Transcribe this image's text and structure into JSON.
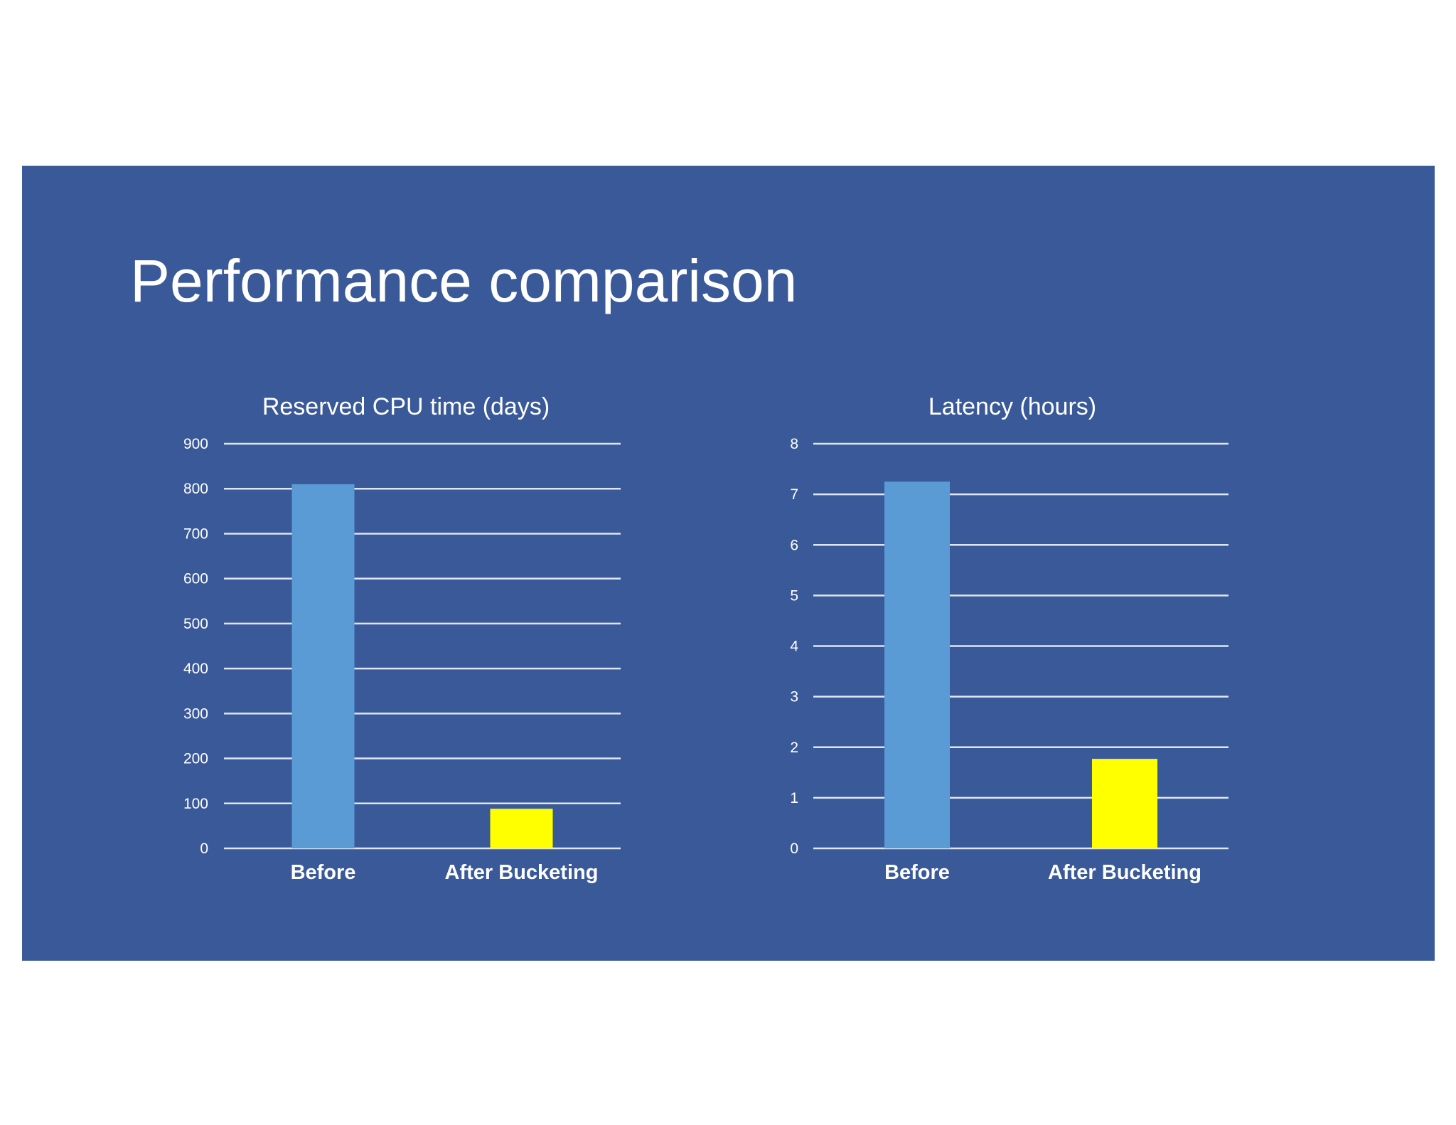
{
  "slide": {
    "title": "Performance comparison",
    "background_color": "#3a5999"
  },
  "chart_data": [
    {
      "type": "bar",
      "title": "Reserved CPU time (days)",
      "xlabel": "",
      "ylabel": "",
      "categories": [
        "Before",
        "After Bucketing"
      ],
      "values": [
        810,
        88
      ],
      "bar_colors": [
        "#5b9bd5",
        "#ffff00"
      ],
      "ylim": [
        0,
        900
      ],
      "yticks": [
        0,
        100,
        200,
        300,
        400,
        500,
        600,
        700,
        800,
        900
      ],
      "grid": true,
      "legend": "none"
    },
    {
      "type": "bar",
      "title": "Latency (hours)",
      "xlabel": "",
      "ylabel": "",
      "categories": [
        "Before",
        "After Bucketing"
      ],
      "values": [
        7.25,
        1.77
      ],
      "bar_colors": [
        "#5b9bd5",
        "#ffff00"
      ],
      "ylim": [
        0,
        8
      ],
      "yticks": [
        0,
        1,
        2,
        3,
        4,
        5,
        6,
        7,
        8
      ],
      "grid": true,
      "legend": "none"
    }
  ]
}
